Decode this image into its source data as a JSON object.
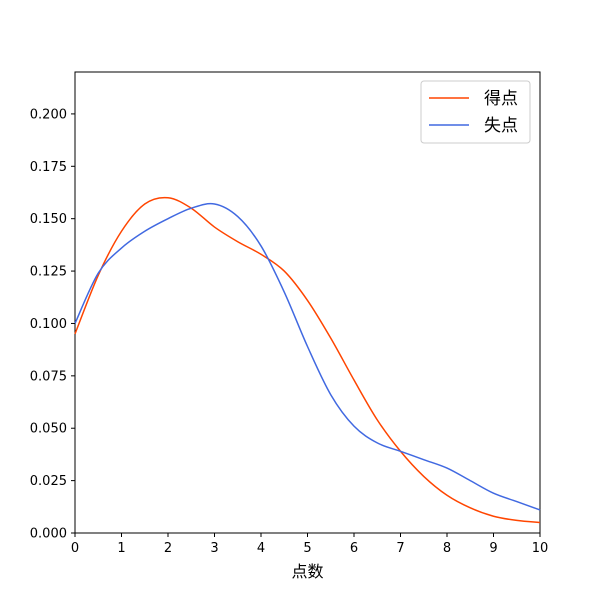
{
  "chart_data": {
    "type": "line",
    "title": "",
    "xlabel": "点数",
    "ylabel": "",
    "xlim": [
      0,
      10
    ],
    "ylim": [
      0,
      0.22
    ],
    "grid": false,
    "legend_position": "top-right",
    "x_ticks": [
      0,
      1,
      2,
      3,
      4,
      5,
      6,
      7,
      8,
      9,
      10
    ],
    "x_tick_labels": [
      "0",
      "1",
      "2",
      "3",
      "4",
      "5",
      "6",
      "7",
      "8",
      "9",
      "10"
    ],
    "y_ticks": [
      0,
      0.025,
      0.05,
      0.075,
      0.1,
      0.125,
      0.15,
      0.175,
      0.2
    ],
    "y_tick_labels": [
      "0.000",
      "0.025",
      "0.050",
      "0.075",
      "0.100",
      "0.125",
      "0.150",
      "0.175",
      "0.200"
    ],
    "x": [
      0,
      0.5,
      1,
      1.5,
      2,
      2.5,
      3,
      3.5,
      4,
      4.5,
      5,
      5.5,
      6,
      6.5,
      7,
      7.5,
      8,
      8.5,
      9,
      9.5,
      10
    ],
    "series": [
      {
        "name": "得点",
        "color": "#ff4500",
        "values": [
          0.095,
          0.123,
          0.144,
          0.157,
          0.16,
          0.155,
          0.146,
          0.139,
          0.133,
          0.125,
          0.111,
          0.093,
          0.073,
          0.054,
          0.039,
          0.027,
          0.018,
          0.012,
          0.008,
          0.006,
          0.005
        ]
      },
      {
        "name": "失点",
        "color": "#4169e1",
        "values": [
          0.1,
          0.124,
          0.136,
          0.144,
          0.15,
          0.155,
          0.157,
          0.151,
          0.137,
          0.115,
          0.089,
          0.066,
          0.051,
          0.043,
          0.039,
          0.035,
          0.031,
          0.025,
          0.019,
          0.015,
          0.011
        ]
      }
    ]
  }
}
